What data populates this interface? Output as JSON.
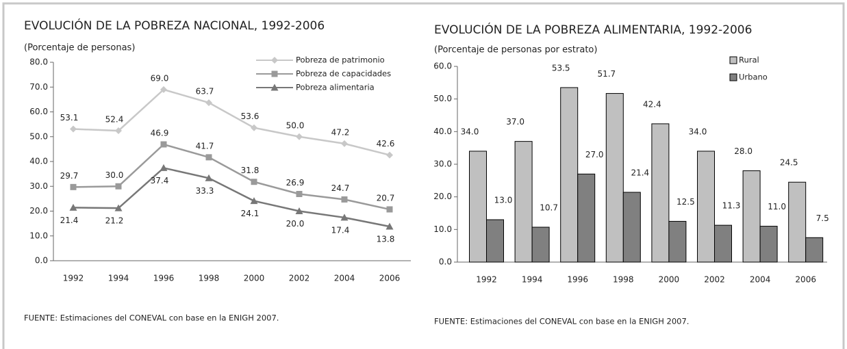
{
  "chart_data": [
    {
      "type": "line",
      "title": "EVOLUCIÓN DE LA POBREZA NACIONAL, 1992-2006",
      "subtitle": "(Porcentaje de personas)",
      "source": "FUENTE: Estimaciones del CONEVAL con base en la ENIGH 2007.",
      "categories": [
        "1992",
        "1994",
        "1996",
        "1998",
        "2000",
        "2002",
        "2004",
        "2006"
      ],
      "series": [
        {
          "name": "Pobreza de patrimonio",
          "color": "#c8c8c8",
          "marker": "diamond",
          "values": [
            53.1,
            52.4,
            69.0,
            63.7,
            53.6,
            50.0,
            47.2,
            42.6
          ],
          "value_labels": [
            "53.1",
            "52.4",
            "69.0",
            "63.7",
            "53.6",
            "50.0",
            "47.2",
            "42.6"
          ]
        },
        {
          "name": "Pobreza de capacidades",
          "color": "#9a9a9a",
          "marker": "square",
          "values": [
            29.7,
            30.0,
            46.9,
            41.7,
            31.8,
            26.9,
            24.7,
            20.7
          ],
          "value_labels": [
            "29.7",
            "30.0",
            "46.9",
            "41.7",
            "31.8",
            "26.9",
            "24.7",
            "20.7"
          ]
        },
        {
          "name": "Pobreza alimentaria",
          "color": "#777777",
          "marker": "triangle",
          "values": [
            21.4,
            21.2,
            37.4,
            33.3,
            24.1,
            20.0,
            17.4,
            13.8
          ],
          "value_labels": [
            "21.4",
            "21.2",
            "37.4",
            "33.3",
            "24.1",
            "20.0",
            "17.4",
            "13.8"
          ]
        }
      ],
      "ylim": [
        0,
        80
      ],
      "yticks": [
        {
          "value": 0,
          "label": "0.0"
        },
        {
          "value": 10,
          "label": "10.0"
        },
        {
          "value": 20,
          "label": "20.0"
        },
        {
          "value": 30,
          "label": "30.0"
        },
        {
          "value": 40,
          "label": "40.0"
        },
        {
          "value": 50,
          "label": "50.0"
        },
        {
          "value": 60,
          "label": "60.0"
        },
        {
          "value": 70,
          "label": "70.0"
        },
        {
          "value": 80,
          "label": "80.0"
        }
      ],
      "legend": "top-right"
    },
    {
      "type": "bar",
      "title": "EVOLUCIÓN DE LA POBREZA ALIMENTARIA, 1992-2006",
      "subtitle": "(Porcentaje de personas por estrato)",
      "source": "FUENTE: Estimaciones del CONEVAL con base en la ENIGH 2007.",
      "categories": [
        "1992",
        "1994",
        "1996",
        "1998",
        "2000",
        "2002",
        "2004",
        "2006"
      ],
      "series": [
        {
          "name": "Rural",
          "color": "#c0c0c0",
          "values": [
            34.0,
            37.0,
            53.5,
            51.7,
            42.4,
            34.0,
            28.0,
            24.5
          ],
          "value_labels": [
            "34.0",
            "37.0",
            "53.5",
            "51.7",
            "42.4",
            "34.0",
            "28.0",
            "24.5"
          ]
        },
        {
          "name": "Urbano",
          "color": "#808080",
          "values": [
            13.0,
            10.7,
            27.0,
            21.4,
            12.5,
            11.3,
            11.0,
            7.5
          ],
          "value_labels": [
            "13.0",
            "10.7",
            "27.0",
            "21.4",
            "12.5",
            "11.3",
            "11.0",
            "7.5"
          ]
        }
      ],
      "ylim": [
        0,
        60
      ],
      "yticks": [
        {
          "value": 0,
          "label": "0.0"
        },
        {
          "value": 10,
          "label": "10.0"
        },
        {
          "value": 20,
          "label": "20.0"
        },
        {
          "value": 30,
          "label": "30.0"
        },
        {
          "value": 40,
          "label": "40.0"
        },
        {
          "value": 50,
          "label": "50.0"
        },
        {
          "value": 60,
          "label": "60.0"
        }
      ],
      "legend": "top-right"
    }
  ]
}
